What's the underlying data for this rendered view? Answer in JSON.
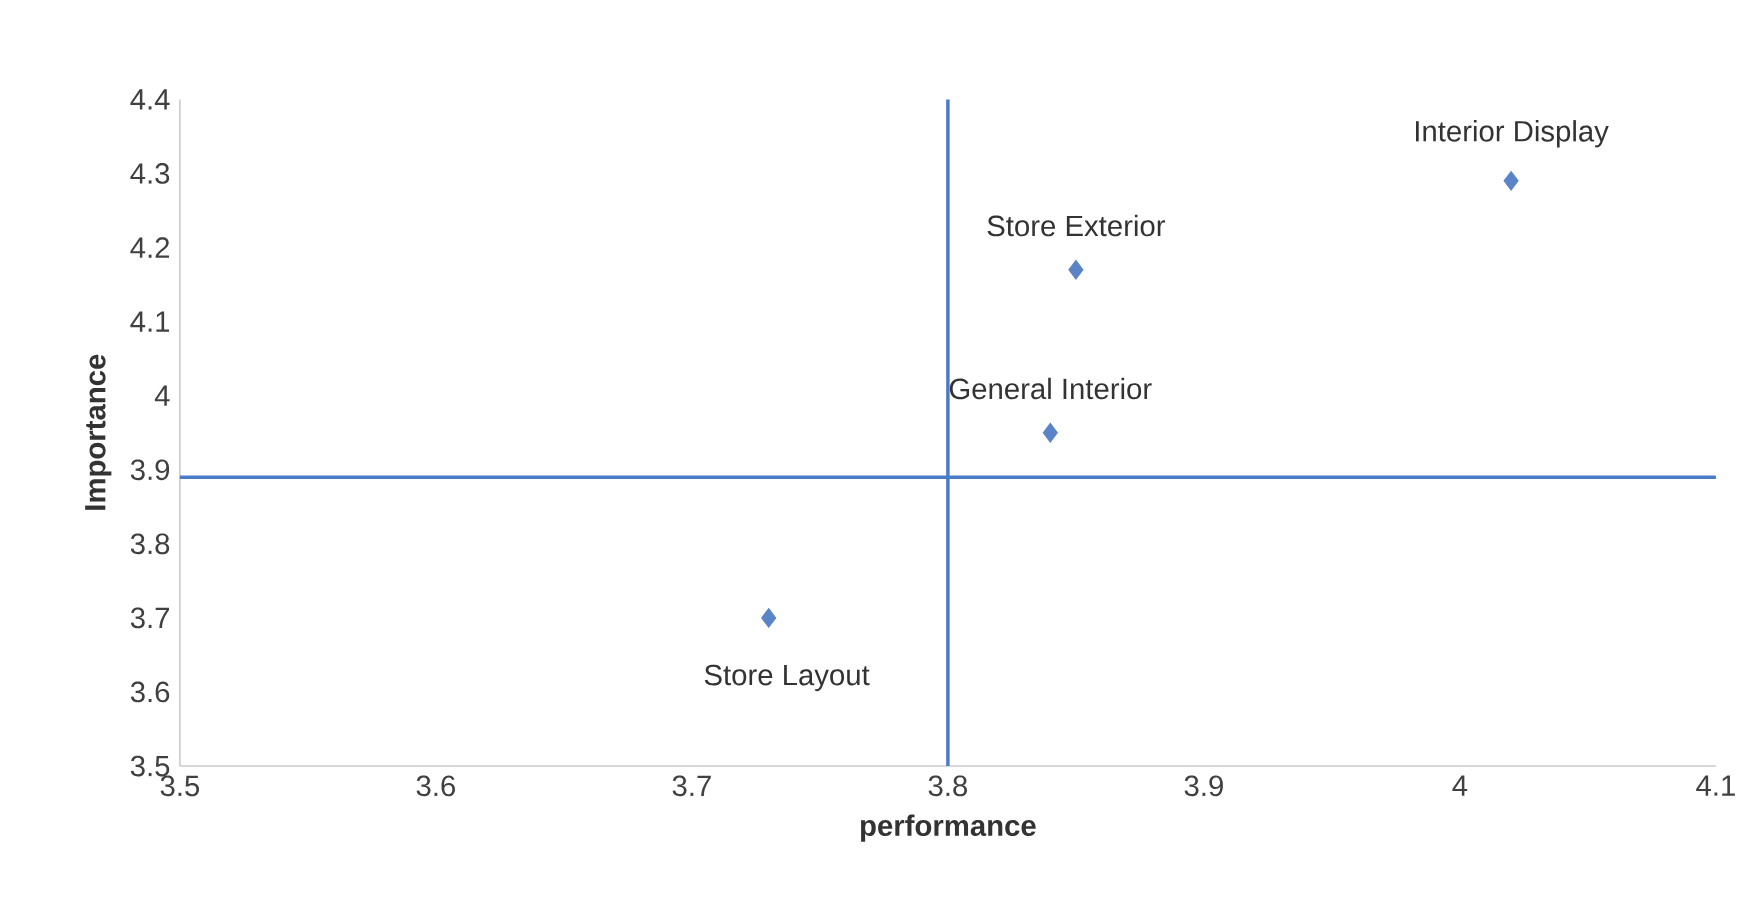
{
  "chart_data": {
    "type": "scatter",
    "xlabel": "performance",
    "ylabel": "Importance",
    "series": [
      {
        "color": "#5b84c8",
        "x": [
          3.73,
          3.84,
          3.85,
          4.02
        ],
        "values": [
          3.7,
          3.95,
          4.17,
          4.29
        ]
      }
    ],
    "marker": "diamond",
    "grid": false,
    "xlim": [
      3.5,
      4.1
    ],
    "xticks": [
      3.5,
      3.6,
      3.7,
      3.8,
      3.9,
      4,
      4.1
    ],
    "ylim": [
      3.5,
      4.4
    ],
    "yticks": [
      3.5,
      3.6,
      3.7,
      3.8,
      3.9,
      4,
      4.1,
      4.2,
      4.3,
      4.4
    ],
    "ref_lines": [
      {
        "axis": "x",
        "value": 3.8,
        "color": "#4a7bc8"
      },
      {
        "axis": "y",
        "value": 3.89,
        "color": "#4a7bc8"
      }
    ],
    "annotations": [
      {
        "text": "Store Layout",
        "x": 3.73,
        "y": 3.7
      },
      {
        "text": "General Interior",
        "x": 3.84,
        "y": 3.95
      },
      {
        "text": "Store Exterior",
        "x": 3.85,
        "y": 4.17
      },
      {
        "text": "Interior Display",
        "x": 4.02,
        "y": 4.29
      }
    ]
  }
}
